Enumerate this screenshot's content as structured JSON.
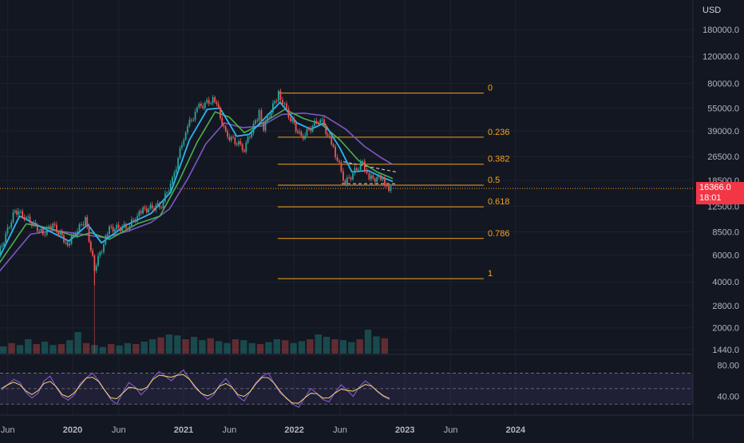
{
  "chart_data": {
    "type": "candlestick",
    "currency_label": "USD",
    "price_axis_ticks": [
      "180000.0",
      "120000.0",
      "80000.0",
      "55000.0",
      "39000.0",
      "26500.0",
      "18500.0",
      "12500.0",
      "8500.0",
      "6000.0",
      "4000.0",
      "2800.0",
      "2000.0",
      "1440.0"
    ],
    "last_price": "16366.0",
    "countdown": "18:01",
    "time_axis_labels": [
      "Jun",
      "2020",
      "Jun",
      "2021",
      "Jun",
      "2022",
      "Jun",
      "2023",
      "Jun",
      "2024"
    ],
    "fib_levels": [
      {
        "label": "0",
        "price": 69000
      },
      {
        "label": "0.236",
        "price": 35500
      },
      {
        "label": "0.382",
        "price": 23600
      },
      {
        "label": "0.5",
        "price": 17200
      },
      {
        "label": "0.618",
        "price": 12400
      },
      {
        "label": "0.786",
        "price": 7700
      },
      {
        "label": "1",
        "price": 4200
      }
    ],
    "price_series": [
      [
        "2019-05-01",
        6000
      ],
      [
        "2019-06-25",
        11800
      ],
      [
        "2019-08-01",
        10500
      ],
      [
        "2019-09-25",
        8300
      ],
      [
        "2019-10-28",
        9400
      ],
      [
        "2019-12-15",
        7100
      ],
      [
        "2020-02-12",
        10300
      ],
      [
        "2020-03-13",
        4900
      ],
      [
        "2020-05-01",
        8900
      ],
      [
        "2020-07-01",
        9200
      ],
      [
        "2020-08-20",
        11800
      ],
      [
        "2020-10-20",
        12800
      ],
      [
        "2020-11-25",
        18500
      ],
      [
        "2021-01-08",
        40000
      ],
      [
        "2021-02-21",
        56000
      ],
      [
        "2021-04-14",
        63500
      ],
      [
        "2021-05-20",
        37000
      ],
      [
        "2021-07-20",
        30000
      ],
      [
        "2021-09-07",
        51000
      ],
      [
        "2021-09-22",
        41000
      ],
      [
        "2021-11-10",
        68500
      ],
      [
        "2021-12-20",
        47000
      ],
      [
        "2022-01-24",
        35000
      ],
      [
        "2022-03-28",
        47500
      ],
      [
        "2022-05-10",
        30000
      ],
      [
        "2022-06-18",
        17800
      ],
      [
        "2022-08-14",
        24400
      ],
      [
        "2022-09-05",
        19000
      ],
      [
        "2022-10-20",
        19200
      ],
      [
        "2022-11-09",
        15800
      ],
      [
        "2022-11-22",
        16366
      ]
    ],
    "ma_fast": [
      [
        "2019-05-01",
        5600
      ],
      [
        "2019-07-10",
        10800
      ],
      [
        "2019-10-01",
        8900
      ],
      [
        "2019-12-20",
        7400
      ],
      [
        "2020-02-20",
        9500
      ],
      [
        "2020-04-05",
        7200
      ],
      [
        "2020-06-20",
        9300
      ],
      [
        "2020-09-15",
        11200
      ],
      [
        "2020-11-20",
        15500
      ],
      [
        "2021-01-20",
        34000
      ],
      [
        "2021-03-20",
        54000
      ],
      [
        "2021-05-01",
        55000
      ],
      [
        "2021-06-25",
        36000
      ],
      [
        "2021-08-05",
        37000
      ],
      [
        "2021-09-15",
        45000
      ],
      [
        "2021-11-15",
        60000
      ],
      [
        "2022-01-10",
        44000
      ],
      [
        "2022-02-25",
        40000
      ],
      [
        "2022-04-10",
        44000
      ],
      [
        "2022-06-01",
        30000
      ],
      [
        "2022-07-10",
        21000
      ],
      [
        "2022-09-01",
        21500
      ],
      [
        "2022-10-20",
        19300
      ],
      [
        "2022-11-22",
        18200
      ]
    ],
    "ma_mid": [
      [
        "2019-05-01",
        5200
      ],
      [
        "2019-08-01",
        9600
      ],
      [
        "2019-10-15",
        9000
      ],
      [
        "2020-01-15",
        7900
      ],
      [
        "2020-03-01",
        8400
      ],
      [
        "2020-05-01",
        7600
      ],
      [
        "2020-08-01",
        9600
      ],
      [
        "2020-10-15",
        10800
      ],
      [
        "2020-12-15",
        18000
      ],
      [
        "2021-02-15",
        33000
      ],
      [
        "2021-04-15",
        52000
      ],
      [
        "2021-06-01",
        48000
      ],
      [
        "2021-07-20",
        38000
      ],
      [
        "2021-09-20",
        44000
      ],
      [
        "2021-12-01",
        54000
      ],
      [
        "2022-02-01",
        47000
      ],
      [
        "2022-04-01",
        43000
      ],
      [
        "2022-06-01",
        34000
      ],
      [
        "2022-08-01",
        25000
      ],
      [
        "2022-10-01",
        21000
      ],
      [
        "2022-11-22",
        19000
      ]
    ],
    "ma_slow": [
      [
        "2019-05-01",
        4600
      ],
      [
        "2019-08-15",
        8200
      ],
      [
        "2019-11-01",
        8700
      ],
      [
        "2020-02-01",
        8200
      ],
      [
        "2020-04-15",
        7800
      ],
      [
        "2020-07-01",
        8600
      ],
      [
        "2020-09-15",
        9800
      ],
      [
        "2020-11-15",
        12000
      ],
      [
        "2021-01-15",
        19000
      ],
      [
        "2021-03-15",
        32000
      ],
      [
        "2021-05-15",
        44000
      ],
      [
        "2021-07-15",
        41000
      ],
      [
        "2021-09-15",
        42000
      ],
      [
        "2021-11-20",
        50000
      ],
      [
        "2022-02-01",
        51000
      ],
      [
        "2022-04-10",
        49000
      ],
      [
        "2022-06-20",
        40000
      ],
      [
        "2022-08-20",
        31000
      ],
      [
        "2022-10-15",
        26000
      ],
      [
        "2022-11-22",
        23500
      ]
    ],
    "rsi_ticks": [
      "80.00",
      "40.00"
    ],
    "rsi_series": [
      48,
      55,
      62,
      58,
      45,
      38,
      44,
      60,
      66,
      52,
      40,
      35,
      42,
      57,
      64,
      70,
      60,
      48,
      36,
      30,
      45,
      58,
      52,
      42,
      50,
      64,
      72,
      66,
      60,
      68,
      74,
      62,
      50,
      44,
      36,
      42,
      55,
      63,
      52,
      40,
      34,
      46,
      58,
      66,
      70,
      56,
      44,
      38,
      30,
      26,
      38,
      50,
      44,
      36,
      33,
      45,
      55,
      48,
      40,
      52,
      60,
      54,
      46,
      40,
      36
    ],
    "volume_series": [
      0.15,
      0.22,
      0.18,
      0.3,
      0.2,
      0.25,
      0.18,
      0.2,
      0.28,
      0.45,
      0.22,
      0.18,
      0.14,
      0.2,
      0.17,
      0.22,
      0.2,
      0.25,
      0.3,
      0.34,
      0.4,
      0.38,
      0.3,
      0.35,
      0.28,
      0.32,
      0.26,
      0.22,
      0.3,
      0.28,
      0.22,
      0.2,
      0.24,
      0.3,
      0.28,
      0.22,
      0.26,
      0.3,
      0.4,
      0.35,
      0.3,
      0.28,
      0.24,
      0.3,
      0.5,
      0.36,
      0.32
    ]
  }
}
